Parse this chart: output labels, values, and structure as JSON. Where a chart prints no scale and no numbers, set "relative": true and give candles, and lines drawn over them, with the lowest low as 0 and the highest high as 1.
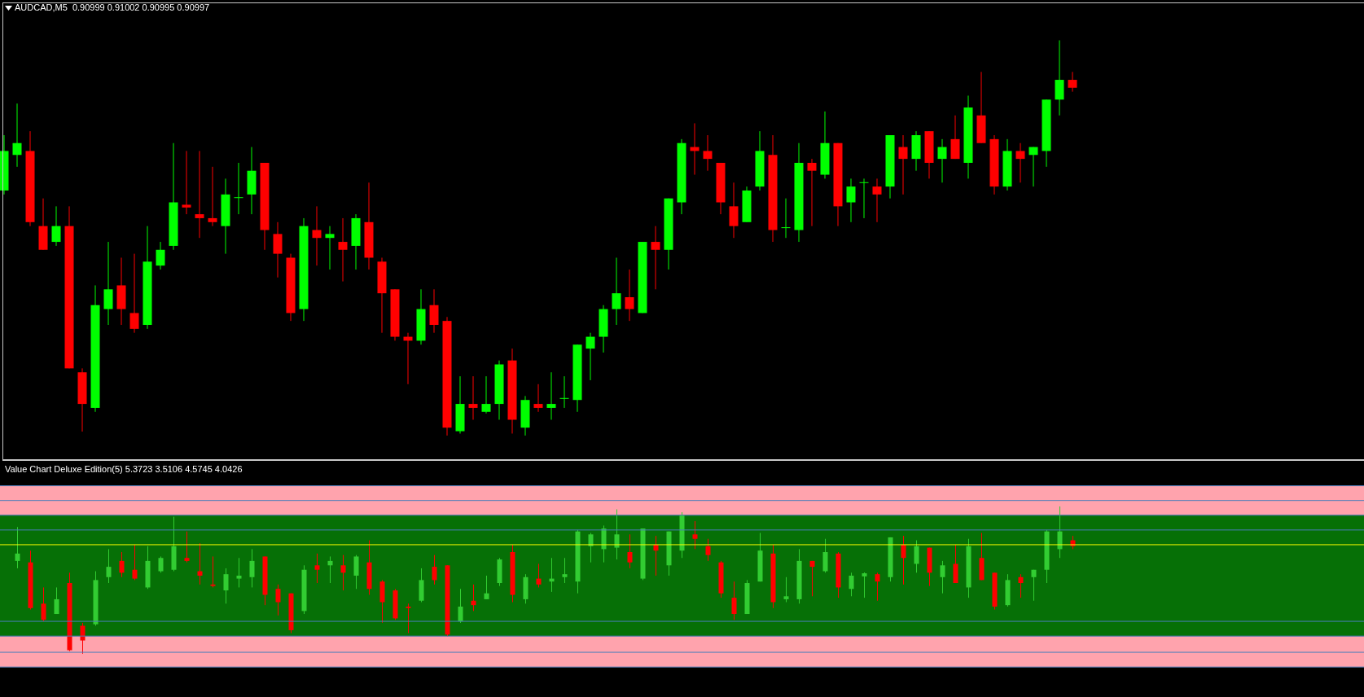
{
  "chart_data": [
    {
      "type": "candlestick",
      "title": "AUDCAD,M5  0.90999 0.91002 0.90995 0.90997",
      "relative": true,
      "categories": [
        null,
        null,
        null,
        null,
        null,
        null,
        null,
        null,
        null,
        null,
        null,
        null,
        null,
        null,
        null,
        null,
        null,
        null,
        null,
        null,
        null,
        null,
        null,
        null,
        null,
        null,
        null,
        null,
        null,
        null,
        null,
        null,
        null,
        null,
        null,
        null,
        null,
        null,
        null,
        null,
        null,
        null,
        null,
        null,
        null,
        null,
        null,
        null,
        null,
        null,
        null,
        null,
        null,
        null,
        null,
        null,
        null,
        null,
        null,
        null,
        null,
        null,
        null,
        null,
        null,
        null,
        null,
        null,
        null,
        null,
        null,
        null,
        null,
        null,
        null,
        null,
        null,
        null,
        null,
        null,
        null,
        null,
        null
      ],
      "ohlc": [
        [
          0.62,
          0.76,
          0.61,
          0.72
        ],
        [
          0.71,
          0.84,
          0.68,
          0.74
        ],
        [
          0.72,
          0.77,
          0.53,
          0.54
        ],
        [
          0.53,
          0.6,
          0.47,
          0.47
        ],
        [
          0.49,
          0.58,
          0.48,
          0.53
        ],
        [
          0.53,
          0.58,
          0.17,
          0.17
        ],
        [
          0.16,
          0.17,
          0.01,
          0.08
        ],
        [
          0.07,
          0.38,
          0.06,
          0.33
        ],
        [
          0.32,
          0.49,
          0.28,
          0.37
        ],
        [
          0.38,
          0.45,
          0.28,
          0.32
        ],
        [
          0.31,
          0.46,
          0.26,
          0.27
        ],
        [
          0.28,
          0.53,
          0.27,
          0.44
        ],
        [
          0.43,
          0.49,
          0.42,
          0.47
        ],
        [
          0.48,
          0.74,
          0.47,
          0.59
        ],
        [
          0.584,
          0.72,
          0.56,
          0.577
        ],
        [
          0.56,
          0.72,
          0.5,
          0.55
        ],
        [
          0.55,
          0.68,
          0.53,
          0.54
        ],
        [
          0.53,
          0.65,
          0.46,
          0.61
        ],
        [
          0.601,
          0.69,
          0.56,
          0.603
        ],
        [
          0.61,
          0.73,
          0.56,
          0.67
        ],
        [
          0.69,
          0.69,
          0.47,
          0.52
        ],
        [
          0.51,
          0.54,
          0.4,
          0.46
        ],
        [
          0.45,
          0.46,
          0.29,
          0.31
        ],
        [
          0.32,
          0.55,
          0.29,
          0.53
        ],
        [
          0.52,
          0.58,
          0.43,
          0.5
        ],
        [
          0.5,
          0.53,
          0.42,
          0.51
        ],
        [
          0.49,
          0.55,
          0.39,
          0.47
        ],
        [
          0.48,
          0.56,
          0.42,
          0.55
        ],
        [
          0.54,
          0.64,
          0.42,
          0.45
        ],
        [
          0.44,
          0.45,
          0.26,
          0.36
        ],
        [
          0.37,
          0.37,
          0.24,
          0.25
        ],
        [
          0.25,
          0.26,
          0.13,
          0.24
        ],
        [
          0.24,
          0.37,
          0.23,
          0.32
        ],
        [
          0.33,
          0.37,
          0.26,
          0.28
        ],
        [
          0.29,
          0.3,
          0,
          0.02
        ],
        [
          0.011,
          0.15,
          0.005,
          0.08
        ],
        [
          0.08,
          0.15,
          0.04,
          0.07
        ],
        [
          0.06,
          0.15,
          0.056,
          0.08
        ],
        [
          0.08,
          0.19,
          0.04,
          0.18
        ],
        [
          0.19,
          0.22,
          0.005,
          0.04
        ],
        [
          0.02,
          0.1,
          0,
          0.09
        ],
        [
          0.08,
          0.13,
          0.06,
          0.07
        ],
        [
          0.07,
          0.16,
          0.04,
          0.08
        ],
        [
          0.093,
          0.15,
          0.07,
          0.095
        ],
        [
          0.09,
          0.23,
          0.06,
          0.23
        ],
        [
          0.22,
          0.26,
          0.14,
          0.25
        ],
        [
          0.25,
          0.33,
          0.21,
          0.32
        ],
        [
          0.32,
          0.45,
          0.28,
          0.36
        ],
        [
          0.35,
          0.42,
          0.29,
          0.32
        ],
        [
          0.31,
          0.49,
          0.31,
          0.49
        ],
        [
          0.49,
          0.53,
          0.37,
          0.47
        ],
        [
          0.47,
          0.6,
          0.42,
          0.6
        ],
        [
          0.59,
          0.75,
          0.56,
          0.74
        ],
        [
          0.73,
          0.79,
          0.66,
          0.72
        ],
        [
          0.72,
          0.76,
          0.67,
          0.7
        ],
        [
          0.69,
          0.69,
          0.56,
          0.59
        ],
        [
          0.58,
          0.64,
          0.5,
          0.53
        ],
        [
          0.54,
          0.63,
          0.54,
          0.62
        ],
        [
          0.63,
          0.77,
          0.62,
          0.72
        ],
        [
          0.71,
          0.76,
          0.49,
          0.52
        ],
        [
          0.525,
          0.6,
          0.5,
          0.527
        ],
        [
          0.52,
          0.74,
          0.49,
          0.69
        ],
        [
          0.69,
          0.7,
          0.53,
          0.67
        ],
        [
          0.66,
          0.82,
          0.65,
          0.74
        ],
        [
          0.74,
          0.74,
          0.53,
          0.58
        ],
        [
          0.59,
          0.65,
          0.54,
          0.63
        ],
        [
          0.639,
          0.65,
          0.55,
          0.641
        ],
        [
          0.63,
          0.65,
          0.54,
          0.61
        ],
        [
          0.63,
          0.76,
          0.6,
          0.76
        ],
        [
          0.73,
          0.76,
          0.61,
          0.7
        ],
        [
          0.7,
          0.77,
          0.67,
          0.76
        ],
        [
          0.77,
          0.77,
          0.65,
          0.69
        ],
        [
          0.7,
          0.75,
          0.64,
          0.73
        ],
        [
          0.75,
          0.81,
          0.7,
          0.7
        ],
        [
          0.69,
          0.86,
          0.65,
          0.83
        ],
        [
          0.81,
          0.92,
          0.74,
          0.74
        ],
        [
          0.75,
          0.76,
          0.61,
          0.63
        ],
        [
          0.63,
          0.75,
          0.62,
          0.72
        ],
        [
          0.72,
          0.74,
          0.64,
          0.7
        ],
        [
          0.71,
          0.73,
          0.63,
          0.73
        ],
        [
          0.72,
          0.85,
          0.68,
          0.85
        ],
        [
          0.85,
          1,
          0.81,
          0.9
        ],
        [
          0.9,
          0.92,
          0.87,
          0.88
        ]
      ],
      "colors": [
        "#00ff00",
        "#00ff00",
        "#ff0000",
        "#ff0000",
        "#00ff00",
        "#ff0000",
        "#ff0000",
        "#00ff00",
        "#00ff00",
        "#ff0000",
        "#ff0000",
        "#00ff00",
        "#00ff00",
        "#00ff00",
        "#ff0000",
        "#ff0000",
        "#ff0000",
        "#00ff00",
        "#00ff00",
        "#00ff00",
        "#ff0000",
        "#ff0000",
        "#ff0000",
        "#00ff00",
        "#ff0000",
        "#00ff00",
        "#ff0000",
        "#00ff00",
        "#ff0000",
        "#ff0000",
        "#ff0000",
        "#ff0000",
        "#00ff00",
        "#ff0000",
        "#ff0000",
        "#00ff00",
        "#ff0000",
        "#00ff00",
        "#00ff00",
        "#ff0000",
        "#00ff00",
        "#ff0000",
        "#00ff00",
        "#00ff00",
        "#00ff00",
        "#00ff00",
        "#00ff00",
        "#00ff00",
        "#ff0000",
        "#00ff00",
        "#ff0000",
        "#00ff00",
        "#00ff00",
        "#ff0000",
        "#ff0000",
        "#ff0000",
        "#ff0000",
        "#00ff00",
        "#00ff00",
        "#ff0000",
        "#00ff00",
        "#00ff00",
        "#ff0000",
        "#00ff00",
        "#ff0000",
        "#00ff00",
        "#00ff00",
        "#ff0000",
        "#00ff00",
        "#ff0000",
        "#00ff00",
        "#ff0000",
        "#00ff00",
        "#ff0000",
        "#00ff00",
        "#ff0000",
        "#ff0000",
        "#00ff00",
        "#ff0000",
        "#00ff00",
        "#00ff00",
        "#00ff00",
        "#ff0000"
      ]
    },
    {
      "type": "candlestick",
      "title": "Value Chart Deluxe Edition(5) 5.3723 3.5106 4.5745 4.0426",
      "relative": true,
      "categories": [
        null,
        null,
        null,
        null,
        null,
        null,
        null,
        null,
        null,
        null,
        null,
        null,
        null,
        null,
        null,
        null,
        null,
        null,
        null,
        null,
        null,
        null,
        null,
        null,
        null,
        null,
        null,
        null,
        null,
        null,
        null,
        null,
        null,
        null,
        null,
        null,
        null,
        null,
        null,
        null,
        null,
        null,
        null,
        null,
        null,
        null,
        null,
        null,
        null,
        null,
        null,
        null,
        null,
        null,
        null,
        null,
        null,
        null,
        null,
        null,
        null,
        null,
        null,
        null,
        null,
        null,
        null,
        null,
        null,
        null,
        null,
        null,
        null,
        null,
        null,
        null,
        null,
        null,
        null,
        null,
        null,
        null,
        null
      ],
      "ohlc": [
        null,
        [
          0.63,
          0.86,
          0.58,
          0.68
        ],
        [
          0.62,
          0.7,
          0.3,
          0.31
        ],
        [
          0.34,
          0.45,
          0.22,
          0.23
        ],
        [
          0.27,
          0.45,
          0.27,
          0.37
        ],
        [
          0.48,
          0.55,
          0.018,
          0.024
        ],
        [
          0.19,
          0.21,
          0,
          0.09
        ],
        [
          0.2,
          0.56,
          0.19,
          0.5
        ],
        [
          0.52,
          0.71,
          0.48,
          0.59
        ],
        [
          0.63,
          0.69,
          0.52,
          0.55
        ],
        [
          0.57,
          0.74,
          0.5,
          0.51
        ],
        [
          0.45,
          0.73,
          0.44,
          0.63
        ],
        [
          0.56,
          0.66,
          0.55,
          0.65
        ],
        [
          0.57,
          0.93,
          0.56,
          0.73
        ],
        [
          0.65,
          0.83,
          0.62,
          0.63
        ],
        [
          0.56,
          0.75,
          0.47,
          0.53
        ],
        [
          0.47,
          0.66,
          0.45,
          0.46
        ],
        [
          0.43,
          0.58,
          0.34,
          0.54
        ],
        [
          0.51,
          0.65,
          0.45,
          0.53
        ],
        [
          0.52,
          0.71,
          0.45,
          0.63
        ],
        [
          0.66,
          0.66,
          0.33,
          0.4
        ],
        [
          0.44,
          0.47,
          0.26,
          0.35
        ],
        [
          0.41,
          0.41,
          0.14,
          0.16
        ],
        [
          0.29,
          0.6,
          0.27,
          0.57
        ],
        [
          0.6,
          0.68,
          0.48,
          0.57
        ],
        [
          0.6,
          0.66,
          0.48,
          0.63
        ],
        [
          0.6,
          0.67,
          0.43,
          0.55
        ],
        [
          0.53,
          0.67,
          0.44,
          0.66
        ],
        [
          0.62,
          0.77,
          0.4,
          0.44
        ],
        [
          0.49,
          0.5,
          0.21,
          0.35
        ],
        [
          0.43,
          0.44,
          0.23,
          0.24
        ],
        [
          0.32,
          0.34,
          0.14,
          0.31
        ],
        [
          0.36,
          0.58,
          0.35,
          0.5
        ],
        [
          0.59,
          0.67,
          0.47,
          0.5
        ],
        [
          0.6,
          0.6,
          0.12,
          0.13
        ],
        [
          0.22,
          0.44,
          0.21,
          0.32
        ],
        [
          0.36,
          0.47,
          0.29,
          0.33
        ],
        [
          0.37,
          0.53,
          0.37,
          0.41
        ],
        [
          0.48,
          0.65,
          0.46,
          0.64
        ],
        [
          0.69,
          0.74,
          0.35,
          0.4
        ],
        [
          0.37,
          0.54,
          0.34,
          0.52
        ],
        [
          0.51,
          0.61,
          0.45,
          0.47
        ],
        [
          0.49,
          0.65,
          0.42,
          0.51
        ],
        [
          0.52,
          0.65,
          0.48,
          0.54
        ],
        [
          0.49,
          0.84,
          0.41,
          0.83
        ],
        [
          0.73,
          0.82,
          0.62,
          0.81
        ],
        [
          0.71,
          0.87,
          0.62,
          0.85
        ],
        [
          0.72,
          0.98,
          0.64,
          0.81
        ],
        [
          0.69,
          0.81,
          0.58,
          0.62
        ],
        [
          0.51,
          0.85,
          0.5,
          0.85
        ],
        [
          0.74,
          0.8,
          0.53,
          0.7
        ],
        [
          0.6,
          0.83,
          0.53,
          0.83
        ],
        [
          0.7,
          0.96,
          0.65,
          0.94
        ],
        [
          0.81,
          0.9,
          0.71,
          0.78
        ],
        [
          0.73,
          0.78,
          0.63,
          0.67
        ],
        [
          0.62,
          0.63,
          0.38,
          0.41
        ],
        [
          0.38,
          0.49,
          0.23,
          0.27
        ],
        [
          0.27,
          0.5,
          0.27,
          0.48
        ],
        [
          0.49,
          0.82,
          0.49,
          0.7
        ],
        [
          0.68,
          0.74,
          0.31,
          0.35
        ],
        [
          0.37,
          0.52,
          0.35,
          0.39
        ],
        [
          0.37,
          0.71,
          0.34,
          0.63
        ],
        [
          0.63,
          0.63,
          0.39,
          0.59
        ],
        [
          0.56,
          0.78,
          0.55,
          0.69
        ],
        [
          0.68,
          0.69,
          0.38,
          0.45
        ],
        [
          0.44,
          0.55,
          0.39,
          0.53
        ],
        [
          0.525,
          0.552,
          0.38,
          0.546
        ],
        [
          0.54,
          0.55,
          0.36,
          0.49
        ],
        [
          0.52,
          0.79,
          0.49,
          0.79
        ],
        [
          0.74,
          0.8,
          0.47,
          0.65
        ],
        [
          0.61,
          0.77,
          0.55,
          0.73
        ],
        [
          0.72,
          0.72,
          0.46,
          0.55
        ],
        [
          0.52,
          0.63,
          0.41,
          0.6
        ],
        [
          0.61,
          0.74,
          0.48,
          0.48
        ],
        [
          0.45,
          0.78,
          0.38,
          0.73
        ],
        [
          0.65,
          0.82,
          0.5,
          0.5
        ],
        [
          0.55,
          0.55,
          0.3,
          0.32
        ],
        [
          0.33,
          0.54,
          0.32,
          0.5
        ],
        [
          0.52,
          0.54,
          0.38,
          0.48
        ],
        [
          0.52,
          0.57,
          0.36,
          0.57
        ],
        [
          0.57,
          0.84,
          0.48,
          0.83
        ],
        [
          0.71,
          1,
          0.65,
          0.83
        ],
        [
          0.77,
          0.8,
          0.71,
          0.73
        ]
      ],
      "colors": [
        null,
        "#32cd32",
        "#ff0000",
        "#ff0000",
        "#32cd32",
        "#ff0000",
        "#ff0000",
        "#32cd32",
        "#32cd32",
        "#ff0000",
        "#ff0000",
        "#32cd32",
        "#32cd32",
        "#32cd32",
        "#ff0000",
        "#ff0000",
        "#ff0000",
        "#32cd32",
        "#32cd32",
        "#32cd32",
        "#ff0000",
        "#ff0000",
        "#ff0000",
        "#32cd32",
        "#ff0000",
        "#32cd32",
        "#ff0000",
        "#32cd32",
        "#ff0000",
        "#ff0000",
        "#ff0000",
        "#ff0000",
        "#32cd32",
        "#ff0000",
        "#ff0000",
        "#32cd32",
        "#ff0000",
        "#32cd32",
        "#32cd32",
        "#ff0000",
        "#32cd32",
        "#ff0000",
        "#32cd32",
        "#32cd32",
        "#32cd32",
        "#32cd32",
        "#32cd32",
        "#32cd32",
        "#ff0000",
        "#32cd32",
        "#ff0000",
        "#32cd32",
        "#32cd32",
        "#ff0000",
        "#ff0000",
        "#ff0000",
        "#ff0000",
        "#32cd32",
        "#32cd32",
        "#ff0000",
        "#32cd32",
        "#32cd32",
        "#ff0000",
        "#32cd32",
        "#ff0000",
        "#32cd32",
        "#32cd32",
        "#ff0000",
        "#32cd32",
        "#ff0000",
        "#32cd32",
        "#ff0000",
        "#32cd32",
        "#ff0000",
        "#32cd32",
        "#ff0000",
        "#ff0000",
        "#32cd32",
        "#ff0000",
        "#32cd32",
        "#32cd32",
        "#32cd32",
        "#ff0000"
      ],
      "bands": [
        {
          "axis": "y",
          "from": 0.94,
          "to": 1.14,
          "color": "#ffa3ad"
        },
        {
          "axis": "y",
          "from": 0.12,
          "to": 0.94,
          "color": "#067006"
        },
        {
          "axis": "y",
          "from": -0.09,
          "to": 0.12,
          "color": "#ffa3ad"
        }
      ],
      "ref_lines": [
        {
          "axis": "y",
          "value": 1.14,
          "color": "#4a7ebb"
        },
        {
          "axis": "y",
          "value": 1.04,
          "color": "#4a7ebb"
        },
        {
          "axis": "y",
          "value": 0.94,
          "color": "#4a7ebb"
        },
        {
          "axis": "y",
          "value": 0.84,
          "color": "#4a7ebb"
        },
        {
          "axis": "y",
          "value": 0.74,
          "color": "#ffff00"
        },
        {
          "axis": "y",
          "value": 0.22,
          "color": "#4a7ebb"
        },
        {
          "axis": "y",
          "value": 0.12,
          "color": "#4a7ebb"
        },
        {
          "axis": "y",
          "value": 0.01,
          "color": "#4a7ebb"
        },
        {
          "axis": "y",
          "value": -0.09,
          "color": "#4a7ebb"
        }
      ]
    }
  ]
}
